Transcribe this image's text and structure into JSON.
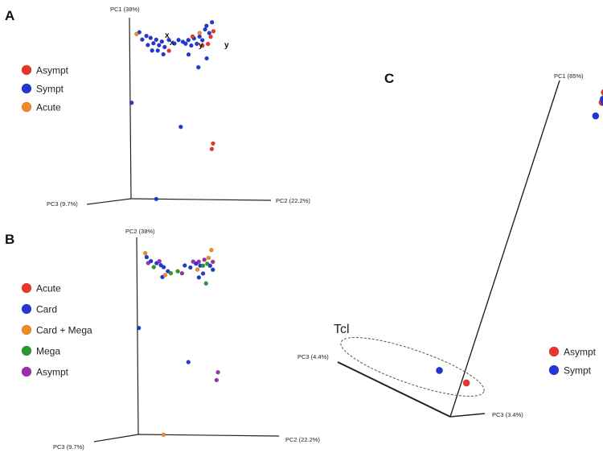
{
  "colors": {
    "Asympt_A": "#e8362a",
    "Sympt": "#2238d6",
    "Acute_A": "#f08a24",
    "Acute_B": "#e8362a",
    "Card": "#2238d6",
    "Card + Mega": "#f08a24",
    "Mega": "#2a9a2a",
    "Asympt_B": "#9a2fb0",
    "Asympt_C": "#e8362a",
    "Sympt_C": "#2238d6",
    "axis": "#222222",
    "ellipse": "#555555"
  },
  "chart_data": [
    {
      "panel": "A",
      "type": "scatter",
      "axes": [
        "PC1 (38%)",
        "PC2 (22.2%)",
        "PC3 (9.7%)"
      ],
      "legend": [
        {
          "label": "Asympt",
          "color_key": "Asympt_A"
        },
        {
          "label": "Sympt",
          "color_key": "Sympt"
        },
        {
          "label": "Acute",
          "color_key": "Acute_A"
        }
      ],
      "point_labels": [
        "x",
        "x",
        "y",
        "y"
      ],
      "series": [
        {
          "name": "Sympt",
          "color_key": "Sympt",
          "points": [
            [
              0.07,
              0.92
            ],
            [
              0.09,
              0.88
            ],
            [
              0.12,
              0.9
            ],
            [
              0.15,
              0.89
            ],
            [
              0.17,
              0.86
            ],
            [
              0.19,
              0.88
            ],
            [
              0.21,
              0.85
            ],
            [
              0.23,
              0.87
            ],
            [
              0.25,
              0.84
            ],
            [
              0.13,
              0.85
            ],
            [
              0.16,
              0.82
            ],
            [
              0.2,
              0.82
            ],
            [
              0.24,
              0.8
            ],
            [
              0.28,
              0.88
            ],
            [
              0.32,
              0.86
            ],
            [
              0.35,
              0.88
            ],
            [
              0.38,
              0.87
            ],
            [
              0.4,
              0.86
            ],
            [
              0.42,
              0.88
            ],
            [
              0.44,
              0.85
            ],
            [
              0.46,
              0.89
            ],
            [
              0.48,
              0.86
            ],
            [
              0.5,
              0.9
            ],
            [
              0.52,
              0.88
            ],
            [
              0.54,
              0.94
            ],
            [
              0.55,
              0.96
            ],
            [
              0.57,
              0.92
            ],
            [
              0.59,
              0.98
            ],
            [
              0.42,
              0.8
            ],
            [
              0.55,
              0.78
            ],
            [
              0.49,
              0.73
            ],
            [
              0.01,
              0.53
            ],
            [
              0.36,
              0.4
            ],
            [
              0.18,
              0.0
            ]
          ]
        },
        {
          "name": "Asympt",
          "color_key": "Asympt_A",
          "points": [
            [
              0.28,
              0.82
            ],
            [
              0.45,
              0.9
            ],
            [
              0.56,
              0.86
            ],
            [
              0.58,
              0.9
            ],
            [
              0.6,
              0.93
            ],
            [
              0.52,
              0.85
            ],
            [
              0.59,
              0.31
            ],
            [
              0.58,
              0.28
            ]
          ]
        },
        {
          "name": "Acute",
          "color_key": "Acute_A",
          "points": [
            [
              0.05,
              0.91
            ],
            [
              0.5,
              0.92
            ]
          ]
        }
      ]
    },
    {
      "panel": "B",
      "type": "scatter",
      "axes": [
        "PC2 (38%)",
        "PC2 (22.2%)",
        "PC3 (9.7%)"
      ],
      "legend": [
        {
          "label": "Acute",
          "color_key": "Acute_B"
        },
        {
          "label": "Card",
          "color_key": "Card"
        },
        {
          "label": "Card + Mega",
          "color_key": "Card + Mega"
        },
        {
          "label": "Mega",
          "color_key": "Mega"
        },
        {
          "label": "Asympt",
          "color_key": "Asympt_B"
        }
      ],
      "series": [
        {
          "name": "Card",
          "color_key": "Card",
          "points": [
            [
              0.07,
              0.9
            ],
            [
              0.1,
              0.88
            ],
            [
              0.14,
              0.87
            ],
            [
              0.17,
              0.86
            ],
            [
              0.19,
              0.85
            ],
            [
              0.22,
              0.83
            ],
            [
              0.18,
              0.8
            ],
            [
              0.34,
              0.86
            ],
            [
              0.38,
              0.85
            ],
            [
              0.42,
              0.87
            ],
            [
              0.45,
              0.86
            ],
            [
              0.47,
              0.82
            ],
            [
              0.52,
              0.86
            ],
            [
              0.54,
              0.84
            ],
            [
              0.01,
              0.54
            ],
            [
              0.36,
              0.37
            ],
            [
              0.44,
              0.8
            ]
          ]
        },
        {
          "name": "Card + Mega",
          "color_key": "Card + Mega",
          "points": [
            [
              0.06,
              0.92
            ],
            [
              0.2,
              0.81
            ],
            [
              0.43,
              0.84
            ],
            [
              0.51,
              0.9
            ],
            [
              0.53,
              0.94
            ],
            [
              0.18,
              0.0
            ]
          ]
        },
        {
          "name": "Mega",
          "color_key": "Mega",
          "points": [
            [
              0.12,
              0.85
            ],
            [
              0.24,
              0.82
            ],
            [
              0.29,
              0.83
            ],
            [
              0.47,
              0.86
            ],
            [
              0.5,
              0.87
            ],
            [
              0.49,
              0.77
            ]
          ]
        },
        {
          "name": "Asympt",
          "color_key": "Asympt_B",
          "points": [
            [
              0.08,
              0.87
            ],
            [
              0.16,
              0.88
            ],
            [
              0.32,
              0.82
            ],
            [
              0.4,
              0.88
            ],
            [
              0.44,
              0.88
            ],
            [
              0.48,
              0.89
            ],
            [
              0.54,
              0.88
            ],
            [
              0.57,
              0.32
            ],
            [
              0.56,
              0.28
            ]
          ]
        }
      ]
    },
    {
      "panel": "C",
      "type": "scatter",
      "axes": [
        "PC1 (85%)",
        "PC3 (3.4%)",
        "PC3 (4.4%)"
      ],
      "annotation": "Tcl",
      "legend": [
        {
          "label": "Asympt",
          "color_key": "Asympt_C"
        },
        {
          "label": "Sympt",
          "color_key": "Sympt_C"
        }
      ],
      "series": [
        {
          "name": "Asympt",
          "color_key": "Asympt_C",
          "points": [
            [
              0.47,
              0.96
            ],
            [
              0.49,
              0.98
            ],
            [
              0.5,
              0.95
            ],
            [
              0.48,
              0.93
            ],
            [
              0.51,
              0.97
            ],
            [
              0.52,
              0.94
            ],
            [
              0.56,
              0.96
            ],
            [
              0.57,
              0.94
            ],
            [
              0.05,
              0.1
            ]
          ]
        },
        {
          "name": "Sympt",
          "color_key": "Sympt_C",
          "points": [
            [
              0.46,
              0.89
            ],
            [
              0.48,
              0.94
            ],
            [
              0.5,
              0.93
            ],
            [
              -0.25,
              0.14
            ]
          ]
        }
      ]
    }
  ]
}
